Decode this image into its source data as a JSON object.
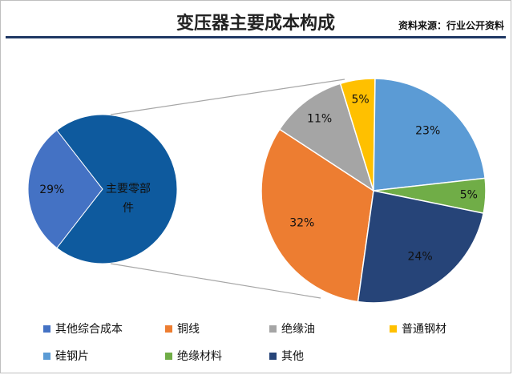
{
  "header": {
    "title": "变压器主要成本构成",
    "source": "资料来源：行业公开资料"
  },
  "chart_data": {
    "type": "pie",
    "title": "变压器主要成本构成",
    "primary_pie": {
      "slices": [
        {
          "label": "其他综合成本",
          "value": 29,
          "value_label": "29%",
          "color": "#4472c4"
        },
        {
          "label": "主要零部件",
          "value": 71,
          "value_label": "",
          "color": "#0e5a9e"
        }
      ],
      "exploded_slice_label": "主要零部件"
    },
    "secondary_pie": {
      "slices": [
        {
          "label": "铜线",
          "value": 32,
          "value_label": "32%",
          "color": "#ed7d31"
        },
        {
          "label": "绝缘油",
          "value": 11,
          "value_label": "11%",
          "color": "#a5a5a5"
        },
        {
          "label": "普通钢材",
          "value": 5,
          "value_label": "5%",
          "color": "#ffc000"
        },
        {
          "label": "硅钢片",
          "value": 23,
          "value_label": "23%",
          "color": "#5b9bd5"
        },
        {
          "label": "绝缘材料",
          "value": 5,
          "value_label": "5%",
          "color": "#70ad47"
        },
        {
          "label": "其他",
          "value": 24,
          "value_label": "24%",
          "color": "#264478"
        }
      ]
    },
    "legend": [
      {
        "label": "其他综合成本",
        "color": "#4472c4"
      },
      {
        "label": "铜线",
        "color": "#ed7d31"
      },
      {
        "label": "绝缘油",
        "color": "#a5a5a5"
      },
      {
        "label": "普通钢材",
        "color": "#ffc000"
      },
      {
        "label": "硅钢片",
        "color": "#5b9bd5"
      },
      {
        "label": "绝缘材料",
        "color": "#70ad47"
      },
      {
        "label": "其他",
        "color": "#264478"
      }
    ],
    "legend_position": "bottom"
  }
}
